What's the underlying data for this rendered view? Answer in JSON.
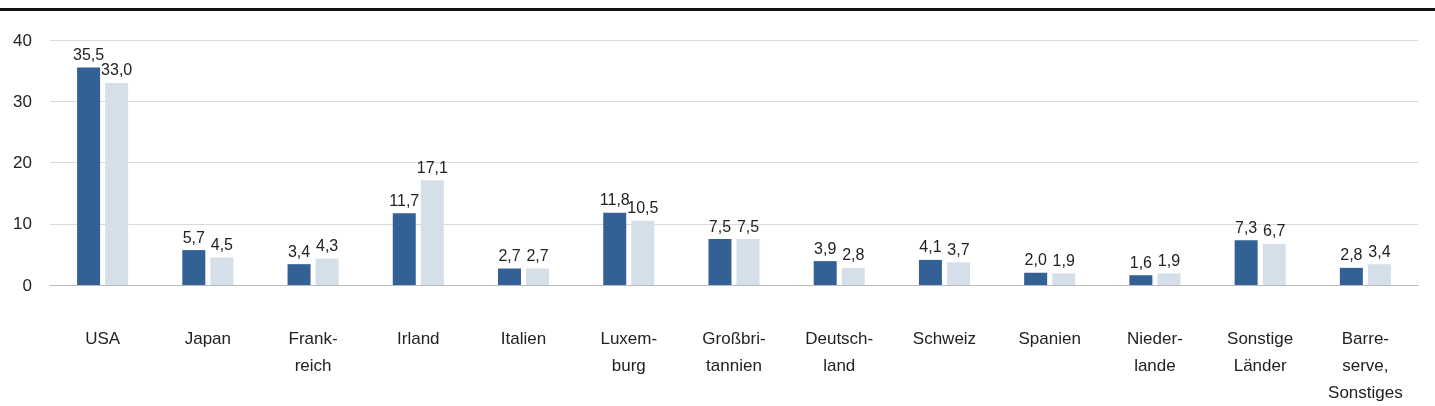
{
  "chart_data": {
    "type": "bar",
    "categories": [
      "USA",
      "Japan",
      "Frank-\nreich",
      "Irland",
      "Italien",
      "Luxem-\nburg",
      "Großbri-\ntannien",
      "Deutsch-\nland",
      "Schweiz",
      "Spanien",
      "Nieder-\nlande",
      "Sonstige\nLänder",
      "Barre-\nserve,\nSonstiges"
    ],
    "series": [
      {
        "color": "#336195",
        "values": [
          35.5,
          5.7,
          3.4,
          11.7,
          2.7,
          11.8,
          7.5,
          3.9,
          4.1,
          2.0,
          1.6,
          7.3,
          2.8
        ],
        "value_labels": [
          "35,5",
          "5,7",
          "3,4",
          "11,7",
          "2,7",
          "11,8",
          "7,5",
          "3,9",
          "4,1",
          "2,0",
          "1,6",
          "7,3",
          "2,8"
        ]
      },
      {
        "color": "#d5dfea",
        "values": [
          33.0,
          4.5,
          4.3,
          17.1,
          2.7,
          10.5,
          7.5,
          2.8,
          3.7,
          1.9,
          1.9,
          6.7,
          3.4
        ],
        "value_labels": [
          "33,0",
          "4,5",
          "4,3",
          "17,1",
          "2,7",
          "10,5",
          "7,5",
          "2,8",
          "3,7",
          "1,9",
          "1,9",
          "6,7",
          "3,4"
        ]
      }
    ],
    "ylim": [
      0,
      40
    ],
    "yticks": [
      0,
      10,
      20,
      30,
      40
    ],
    "grid": "y"
  }
}
